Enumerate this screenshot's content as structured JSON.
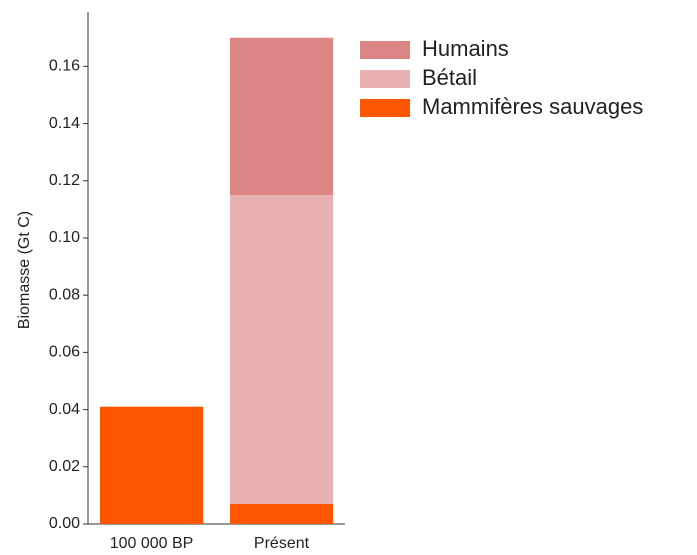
{
  "chart_data": {
    "type": "stacked_bar",
    "y_label": "Biomasse (Gt C)",
    "categories": [
      "100 000 BP",
      "Présent"
    ],
    "series": [
      {
        "name": "Mammifères sauvages",
        "color": "#fd5500",
        "values": [
          0.041,
          0.007
        ]
      },
      {
        "name": "Bétail",
        "color": "#e8b0b0",
        "values": [
          0,
          0.108
        ]
      },
      {
        "name": "Humains",
        "color": "#dc8585",
        "values": [
          0,
          0.055
        ]
      }
    ],
    "ylim": [
      0,
      0.179
    ],
    "yticks": [
      {
        "value": 0,
        "label": "0.00"
      },
      0.02,
      0.04,
      0.06,
      0.08,
      {
        "value": 0.1,
        "label": "0.10"
      },
      0.12,
      0.14,
      0.16
    ],
    "legend": "upper right"
  }
}
